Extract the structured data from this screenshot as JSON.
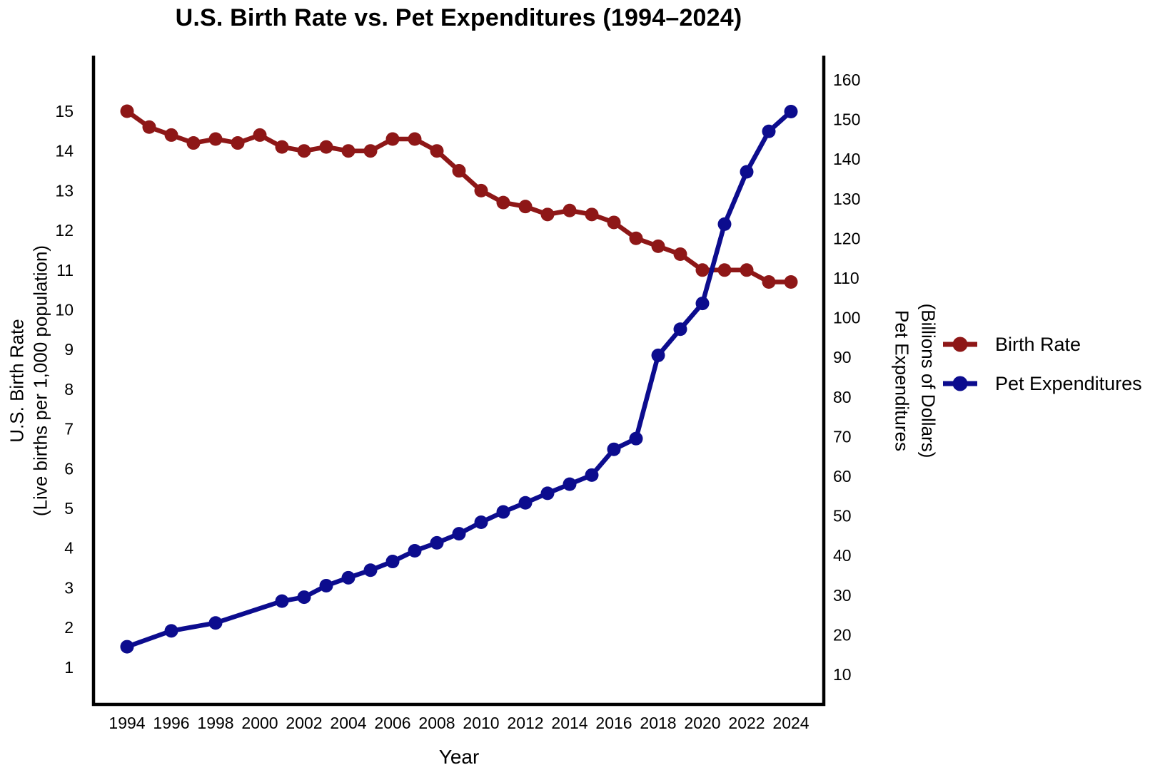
{
  "title": "U.S. Birth Rate vs. Pet Expenditures (1994–2024)",
  "chart_data": {
    "type": "line",
    "title": "U.S. Birth Rate vs. Pet Expenditures (1994–2024)",
    "xlabel": "Year",
    "x_tick_labels": [
      "1994",
      "1996",
      "1998",
      "2000",
      "2002",
      "2004",
      "2006",
      "2008",
      "2010",
      "2012",
      "2014",
      "2016",
      "2018",
      "2020",
      "2022",
      "2024"
    ],
    "left_axis": {
      "title_line1": "U.S. Birth Rate",
      "title_line2": "(Live births per 1,000 population)",
      "ticks": [
        1,
        2,
        3,
        4,
        5,
        6,
        7,
        8,
        9,
        10,
        11,
        12,
        13,
        14,
        15
      ],
      "range": [
        1,
        15
      ]
    },
    "right_axis": {
      "title_line1": "Pet Expenditures",
      "title_line2": "(Billions of Dollars)",
      "ticks": [
        10,
        20,
        30,
        40,
        50,
        60,
        70,
        80,
        90,
        100,
        110,
        120,
        130,
        140,
        150,
        160
      ],
      "range": [
        10,
        160
      ]
    },
    "grid": false,
    "legend": {
      "position": "right-center",
      "items": [
        "Birth Rate",
        "Pet Expenditures"
      ]
    },
    "axis_color": "#000000",
    "background": "#ffffff",
    "series": [
      {
        "name": "Birth Rate",
        "color": "#8E1717",
        "axis": "left",
        "x": [
          1994,
          1995,
          1996,
          1997,
          1998,
          1999,
          2000,
          2001,
          2002,
          2003,
          2004,
          2005,
          2006,
          2007,
          2008,
          2009,
          2010,
          2011,
          2012,
          2013,
          2014,
          2015,
          2016,
          2017,
          2018,
          2019,
          2020,
          2021,
          2022,
          2023,
          2024
        ],
        "values": [
          15.0,
          14.6,
          14.4,
          14.2,
          14.3,
          14.2,
          14.4,
          14.1,
          14.0,
          14.1,
          14.0,
          14.0,
          14.3,
          14.3,
          14.0,
          13.5,
          13.0,
          12.7,
          12.6,
          12.4,
          12.5,
          12.4,
          12.2,
          11.8,
          11.6,
          11.4,
          11.0,
          11.0,
          11.0,
          10.7,
          10.7
        ]
      },
      {
        "name": "Pet Expenditures",
        "color": "#0C0C8E",
        "axis": "right",
        "x": [
          1994,
          1996,
          1998,
          2001,
          2002,
          2003,
          2004,
          2005,
          2006,
          2007,
          2008,
          2009,
          2010,
          2011,
          2012,
          2013,
          2014,
          2015,
          2016,
          2017,
          2018,
          2019,
          2020,
          2021,
          2022,
          2023,
          2024
        ],
        "values": [
          17.0,
          21.0,
          23.0,
          28.5,
          29.5,
          32.4,
          34.4,
          36.3,
          38.5,
          41.2,
          43.2,
          45.5,
          48.4,
          51.0,
          53.3,
          55.7,
          58.0,
          60.3,
          66.8,
          69.5,
          90.5,
          97.1,
          103.6,
          123.6,
          136.8,
          147.0,
          152.0
        ]
      }
    ]
  }
}
